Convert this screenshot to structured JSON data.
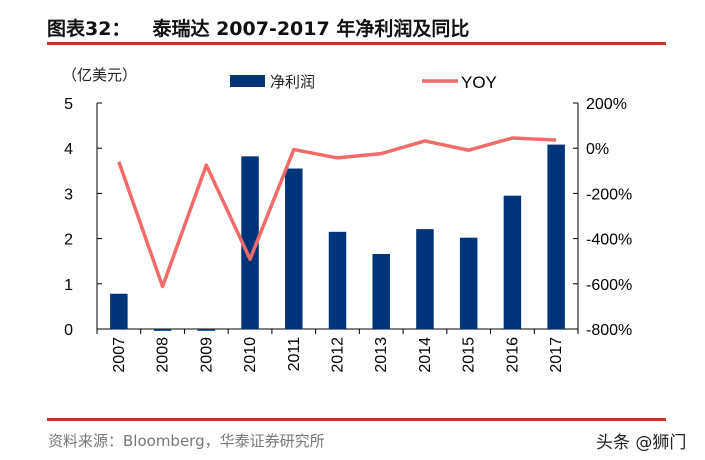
{
  "header": {
    "figure_label": "图表32：",
    "title": "泰瑞达 2007-2017 年净利润及同比"
  },
  "footer": {
    "source": "资料来源：Bloomberg，华泰证券研究所",
    "watermark": "头条 @狮门"
  },
  "colors": {
    "bar": "#003478",
    "line": "#f26b6b",
    "rule": "#c0392b"
  },
  "chart_data": {
    "type": "bar+line",
    "categories": [
      "2007",
      "2008",
      "2009",
      "2010",
      "2011",
      "2012",
      "2013",
      "2014",
      "2015",
      "2016",
      "2017"
    ],
    "unit_label": "（亿美元）",
    "series": [
      {
        "name": "净利润",
        "type": "bar",
        "axis": "left",
        "values": [
          0.78,
          -0.04,
          -0.04,
          3.82,
          3.55,
          2.15,
          1.66,
          2.21,
          2.02,
          2.95,
          4.08
        ]
      },
      {
        "name": "YOY",
        "type": "line",
        "axis": "right",
        "values": [
          -60,
          -612,
          -75,
          -491,
          -6,
          -43,
          -24,
          32,
          -9,
          45,
          36
        ]
      }
    ],
    "left_axis": {
      "ylim": [
        0,
        5
      ],
      "ticks": [
        "0",
        "1",
        "2",
        "3",
        "4",
        "5"
      ]
    },
    "right_axis": {
      "ylim": [
        -800,
        200
      ],
      "ticks": [
        "-800%",
        "-600%",
        "-400%",
        "-200%",
        "0%",
        "200%"
      ]
    },
    "legend": "top-center",
    "grid": false
  }
}
